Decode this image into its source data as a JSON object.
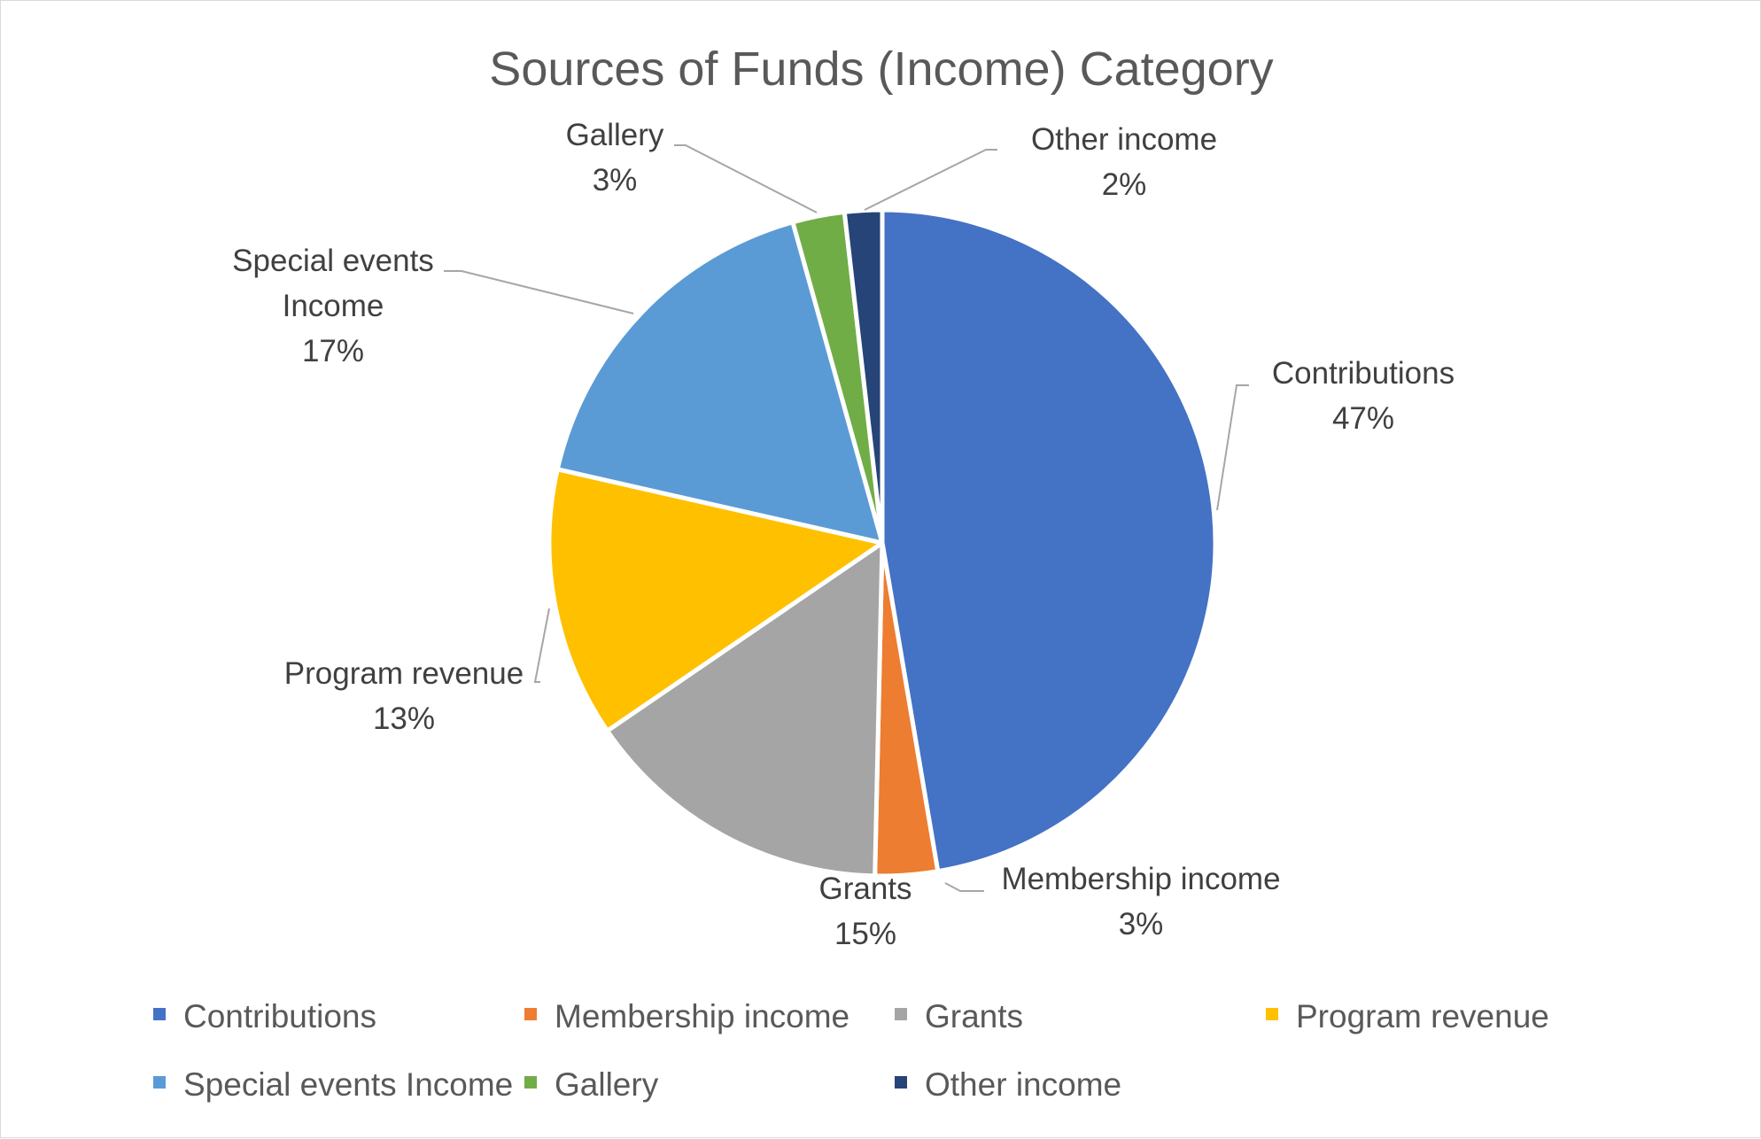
{
  "chart_data": {
    "type": "pie",
    "title": "Sources of Funds (Income) Category",
    "slices": [
      {
        "name": "Contributions",
        "label_lines": [
          "Contributions"
        ],
        "value": 47,
        "value_label": "47%",
        "color": "#4472C4"
      },
      {
        "name": "Membership income",
        "label_lines": [
          "Membership income"
        ],
        "value": 3,
        "value_label": "3%",
        "color": "#ED7D31"
      },
      {
        "name": "Grants",
        "label_lines": [
          "Grants"
        ],
        "value": 15,
        "value_label": "15%",
        "color": "#A5A5A5"
      },
      {
        "name": "Program revenue",
        "label_lines": [
          "Program revenue"
        ],
        "value": 13,
        "value_label": "13%",
        "color": "#FFC000"
      },
      {
        "name": "Special events Income",
        "label_lines": [
          "Special events",
          "Income"
        ],
        "value": 17,
        "value_label": "17%",
        "color": "#5B9BD5"
      },
      {
        "name": "Gallery",
        "label_lines": [
          "Gallery"
        ],
        "value": 2.5,
        "value_label": "3%",
        "color": "#70AD47"
      },
      {
        "name": "Other income",
        "label_lines": [
          "Other income"
        ],
        "value": 1.8,
        "value_label": "2%",
        "color": "#264478"
      }
    ],
    "legend": {
      "position": "bottom"
    }
  }
}
